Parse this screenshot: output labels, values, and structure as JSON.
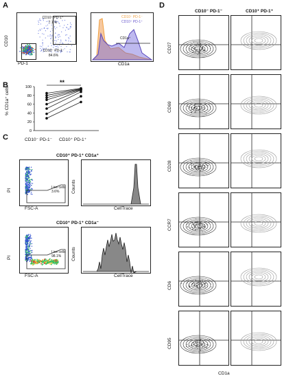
{
  "panels": {
    "A": "A",
    "B": "B",
    "C": "C",
    "D": "D"
  },
  "panelA": {
    "dot_ylabel": "CD10",
    "dot_xlabel": "PD-1",
    "gate_high_label": "CD10⁺ PD-1⁺",
    "gate_high_value": "7.1 %",
    "gate_low_label": "CD10⁻ PD-1⁻",
    "gate_low_value": "84.6%",
    "hist_xlabel": "CD1a",
    "legend": [
      {
        "label": "CD10⁻ PD-1⁻",
        "color": "#f0a040"
      },
      {
        "label": "CD10⁺ PD-1⁺",
        "color": "#6655cc"
      }
    ],
    "hist_gate": "CD1a⁺"
  },
  "panelB": {
    "ylabel": "% CD1a⁺ cells",
    "categories": [
      "CD10⁻ PD-1⁻",
      "CD10⁺ PD-1⁺"
    ],
    "yticks": [
      "0",
      "20",
      "40",
      "60",
      "80",
      "100"
    ],
    "significance": "**"
  },
  "chart_data": {
    "type": "scatter",
    "categories": [
      "CD10⁻ PD-1⁻",
      "CD10⁺ PD-1⁺"
    ],
    "ylabel": "% CD1a⁺ cells",
    "ylim": [
      0,
      100
    ],
    "pairs": [
      [
        85,
        96
      ],
      [
        80,
        95
      ],
      [
        75,
        94
      ],
      [
        70,
        93
      ],
      [
        60,
        92
      ],
      [
        50,
        88
      ],
      [
        38,
        78
      ],
      [
        28,
        65
      ]
    ]
  },
  "panelC": {
    "title1": "CD10⁺ PD-1⁺ CD1a⁺",
    "title2": "CD10⁺ PD-1⁺ CD1a⁻",
    "gate1_label": "Live cells",
    "gate1_value": "3.6%",
    "gate2_label": "Live cells",
    "gate2_value": "98.1%",
    "dot_ylabel": "PI",
    "dot_xlabel": "FSC-A",
    "hist_ylabel": "Counts",
    "hist_xlabel": "CellTrace"
  },
  "panelD": {
    "col_headers": [
      "CD10⁻ PD-1⁻",
      "CD10⁺ PD-1⁺"
    ],
    "row_labels": [
      "CD27",
      "CD69",
      "CD28",
      "CCR7",
      "CD6",
      "CD95"
    ],
    "xlabel": "CD1a"
  }
}
